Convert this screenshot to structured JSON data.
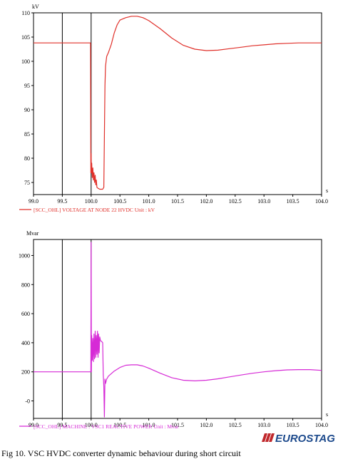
{
  "chart_data": [
    {
      "type": "line",
      "ylabel": "kV",
      "x_ticks": [
        "99.0",
        "99.5",
        "100.0",
        "100.5",
        "101.0",
        "101.5",
        "102.0",
        "102.5",
        "103.0",
        "103.5",
        "104.0"
      ],
      "x_unit": "s",
      "y_ticks": [
        "75",
        "80",
        "85",
        "90",
        "95",
        "100",
        "105",
        "110"
      ],
      "xlim": [
        99.0,
        104.0
      ],
      "ylim": [
        72.5,
        110
      ],
      "grid": "vertical lines at 99.5 and 100.0 only",
      "colors": {
        "series": "#e0302a",
        "axis": "#000000"
      },
      "legend": "bottom-left",
      "series": [
        {
          "name": "[SCC_OHL]  VOLTAGE AT NODE 22  HVDC   Unit : kV",
          "x": [
            99.0,
            99.99,
            99.995,
            100.0,
            100.005,
            100.01,
            100.02,
            100.03,
            100.04,
            100.05,
            100.06,
            100.07,
            100.08,
            100.09,
            100.1,
            100.12,
            100.15,
            100.2,
            100.22,
            100.24,
            100.25,
            100.27,
            100.3,
            100.35,
            100.4,
            100.45,
            100.5,
            100.6,
            100.7,
            100.8,
            100.9,
            101.0,
            101.2,
            101.4,
            101.6,
            101.8,
            102.0,
            102.2,
            102.4,
            102.6,
            102.8,
            103.0,
            103.2,
            103.4,
            103.6,
            103.8,
            104.0
          ],
          "y": [
            103.8,
            103.8,
            77.0,
            81.0,
            77.0,
            79.0,
            76.0,
            78.0,
            75.5,
            77.0,
            75.0,
            76.5,
            74.5,
            75.5,
            74.0,
            73.8,
            73.6,
            73.6,
            74.0,
            95.0,
            99.0,
            101.0,
            101.8,
            103.5,
            105.8,
            107.5,
            108.5,
            109.0,
            109.3,
            109.3,
            109.0,
            108.4,
            106.7,
            104.8,
            103.3,
            102.5,
            102.2,
            102.3,
            102.6,
            102.9,
            103.2,
            103.4,
            103.6,
            103.7,
            103.8,
            103.8,
            103.8
          ]
        }
      ]
    },
    {
      "type": "line",
      "ylabel": "Mvar",
      "x_ticks": [
        "99.0",
        "99.5",
        "100.0",
        "100.5",
        "101.0",
        "101.5",
        "102.0",
        "102.5",
        "103.0",
        "103.5",
        "104.0"
      ],
      "x_unit": "s",
      "y_ticks": [
        "-0",
        "200",
        "400",
        "600",
        "800",
        "1000"
      ],
      "xlim": [
        99.0,
        104.0
      ],
      "ylim": [
        -120,
        1110
      ],
      "grid": "vertical lines at 99.5 and 100.0 only",
      "colors": {
        "series": "#d62ad6",
        "axis": "#000000"
      },
      "legend": "bottom-left",
      "series": [
        {
          "name": "[SCC_OHL]  MACHINE : VSC1      REACTIVE POWER  Unit : Mvar",
          "x": [
            99.0,
            99.99,
            99.995,
            100.0,
            100.005,
            100.01,
            100.02,
            100.03,
            100.04,
            100.05,
            100.06,
            100.07,
            100.08,
            100.09,
            100.1,
            100.11,
            100.12,
            100.13,
            100.14,
            100.15,
            100.16,
            100.17,
            100.18,
            100.19,
            100.2,
            100.21,
            100.22,
            100.23,
            100.24,
            100.25,
            100.27,
            100.3,
            100.4,
            100.5,
            100.6,
            100.7,
            100.8,
            100.9,
            101.0,
            101.2,
            101.4,
            101.6,
            101.8,
            102.0,
            102.2,
            102.4,
            102.6,
            102.8,
            103.0,
            103.2,
            103.4,
            103.6,
            103.8,
            104.0
          ],
          "y": [
            200,
            200,
            200,
            1090,
            200,
            450,
            280,
            430,
            270,
            460,
            290,
            480,
            300,
            450,
            320,
            480,
            300,
            460,
            330,
            440,
            420,
            410,
            410,
            405,
            400,
            180,
            100,
            -110,
            150,
            120,
            150,
            170,
            205,
            230,
            245,
            248,
            248,
            240,
            225,
            190,
            160,
            142,
            138,
            142,
            152,
            165,
            178,
            190,
            200,
            208,
            213,
            215,
            215,
            210
          ]
        }
      ]
    }
  ],
  "logo": {
    "text": "EUROSTAG",
    "color": "#1d4a8c"
  },
  "caption": "Fig 10. VSC HVDC converter dynamic behaviour during short circuit"
}
